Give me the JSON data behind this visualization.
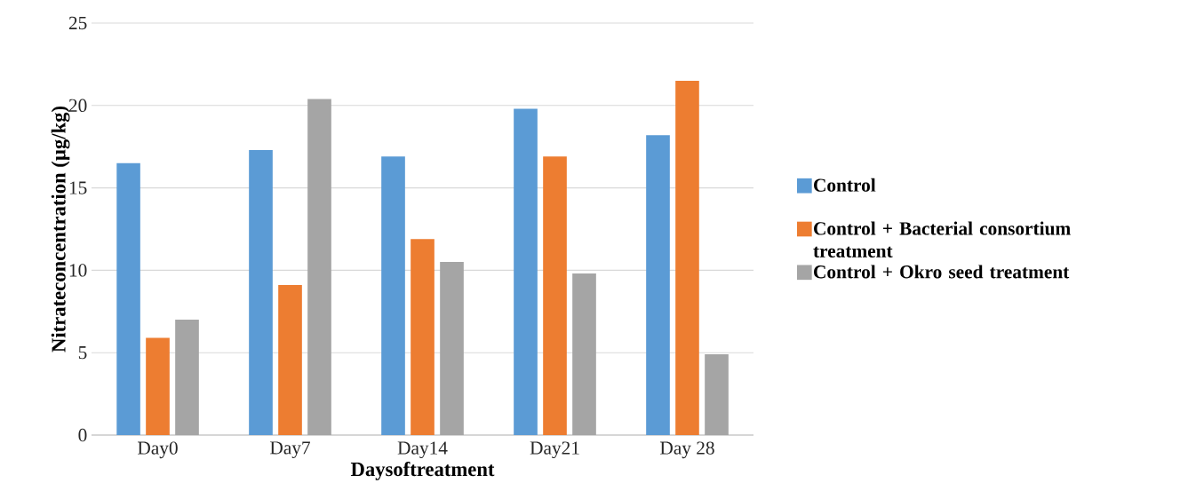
{
  "chart_data": {
    "type": "bar",
    "xlabel": "Daysoftreatment",
    "ylabel": "Nitrateconcentration (µg/kg)",
    "categories": [
      "Day0",
      "Day7",
      "Day14",
      "Day21",
      "Day 28"
    ],
    "series": [
      {
        "name": "Control",
        "color": "#5b9bd5",
        "values": [
          16.5,
          17.3,
          16.9,
          19.8,
          18.2
        ]
      },
      {
        "name": "Control + Bacterial consortium treatment",
        "color": "#ed7d31",
        "values": [
          5.9,
          9.1,
          11.9,
          16.9,
          21.5
        ]
      },
      {
        "name": "Control + Okro seed treatment",
        "color": "#a5a5a5",
        "values": [
          7.0,
          20.4,
          10.5,
          9.8,
          4.9
        ]
      }
    ],
    "ylim": [
      0,
      25
    ],
    "yticks": [
      0,
      5,
      10,
      15,
      20,
      25
    ],
    "grid": "y",
    "legend": "right"
  }
}
